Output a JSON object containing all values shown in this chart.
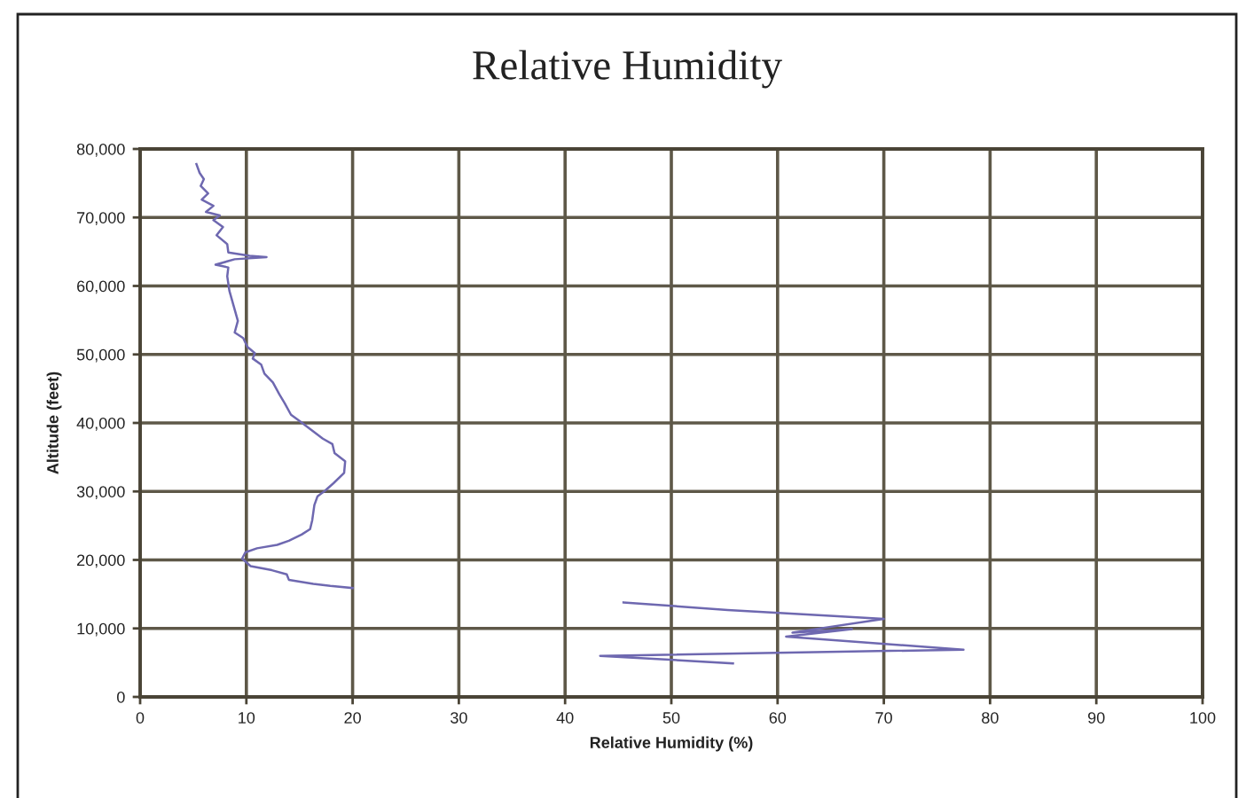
{
  "chart_data": {
    "type": "line",
    "title": "Relative Humidity",
    "xlabel": "Relative Humidity (%)",
    "ylabel": "Altitude (feet)",
    "xlim": [
      0,
      100
    ],
    "xticks": [
      0,
      10,
      20,
      30,
      40,
      50,
      60,
      70,
      80,
      90,
      100
    ],
    "ylim": [
      0,
      80000
    ],
    "yticks": [
      0,
      {
        "value": 10000,
        "label": "10,000"
      },
      {
        "value": 20000,
        "label": "20,000"
      },
      {
        "value": 30000,
        "label": "30,000"
      },
      {
        "value": 40000,
        "label": "40,000"
      },
      {
        "value": 50000,
        "label": "50,000"
      },
      {
        "value": 60000,
        "label": "60,000"
      },
      {
        "value": 70000,
        "label": "70,000"
      },
      {
        "value": 80000,
        "label": "80,000"
      }
    ],
    "grid": true,
    "marker": "none",
    "line_style": "solid",
    "series": [
      {
        "color": "#6e68b0",
        "x": [
          55.8,
          43.3,
          77.5,
          60.8,
          67.0,
          61.4,
          70.0,
          65.3,
          55.3,
          45.5,
          null,
          20.0,
          17.9,
          16.3,
          14.0,
          13.8,
          12.4,
          10.4,
          9.6,
          9.9,
          11.0,
          12.9,
          14.0,
          15.2,
          16.0,
          16.2,
          16.4,
          16.7,
          17.4,
          18.2,
          19.2,
          19.3,
          18.3,
          18.1,
          17.2,
          16.1,
          15.0,
          14.2,
          13.6,
          13.1,
          12.5,
          11.7,
          11.4,
          10.6,
          10.8,
          10.1,
          9.7,
          8.9,
          9.2,
          8.8,
          8.4,
          8.2,
          8.3,
          7.1,
          8.9,
          11.9,
          10.3,
          8.3,
          8.2,
          7.2,
          7.8,
          6.9,
          7.5,
          6.2,
          6.9,
          5.8,
          6.4,
          5.7,
          6.0,
          5.6,
          5.3
        ],
        "values": [
          4900,
          6000,
          6900,
          8800,
          9900,
          9400,
          11400,
          11800,
          12700,
          13800,
          null,
          15900,
          16200,
          16500,
          17100,
          17900,
          18500,
          19100,
          20200,
          21100,
          21700,
          22200,
          22800,
          23700,
          24500,
          25800,
          28000,
          29300,
          30100,
          31200,
          32700,
          34400,
          35600,
          36900,
          37700,
          39000,
          40300,
          41200,
          42900,
          44200,
          45900,
          47200,
          48500,
          49400,
          50200,
          51100,
          52400,
          53200,
          54900,
          57100,
          59300,
          61400,
          62700,
          63100,
          63900,
          64200,
          64400,
          64900,
          66100,
          67400,
          68600,
          69600,
          70300,
          70800,
          71700,
          72600,
          73500,
          74600,
          75600,
          76500,
          77800
        ]
      }
    ]
  }
}
